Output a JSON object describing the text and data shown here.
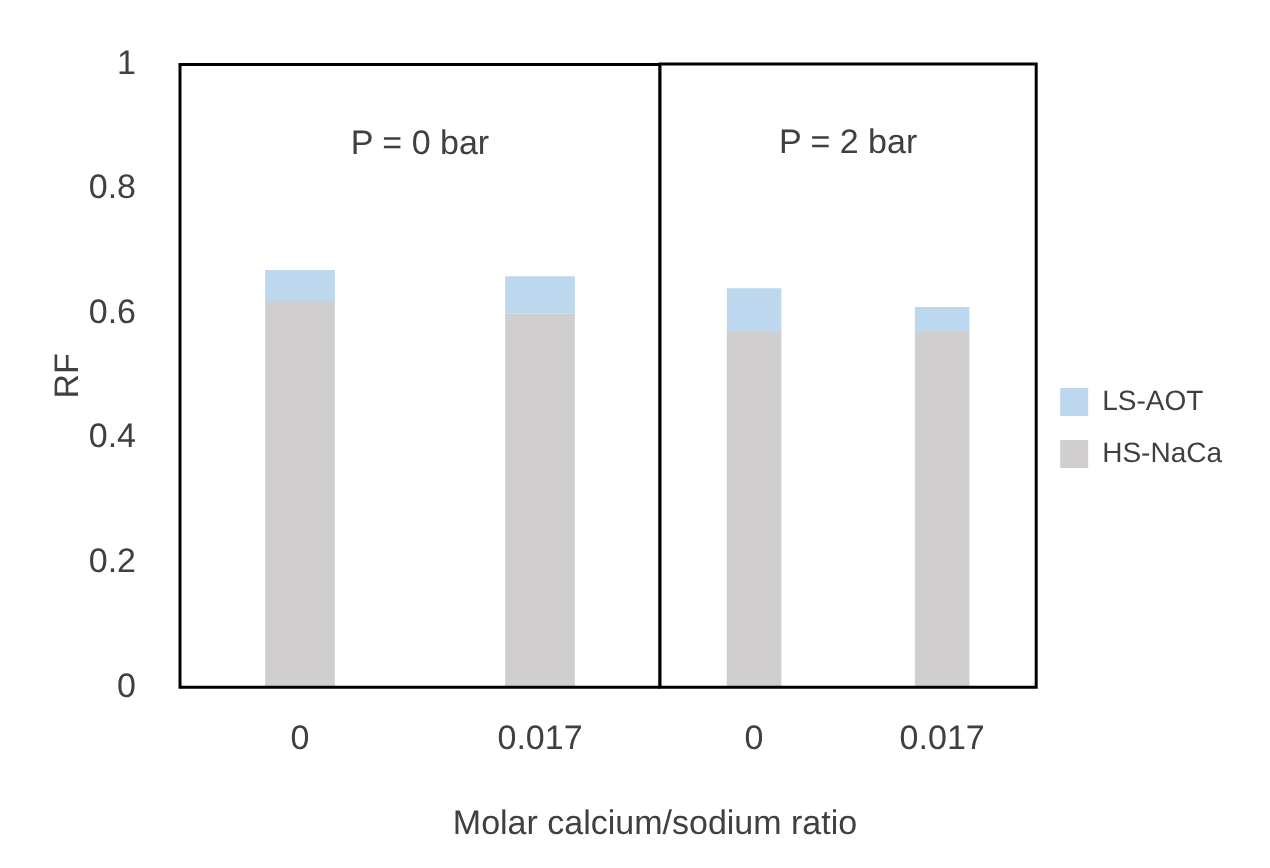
{
  "chart_data": [
    {
      "type": "bar",
      "stacked": true,
      "annotations": [
        "P = 0 bar"
      ],
      "xlabel": "Molar calcium/sodium ratio",
      "ylabel": "RF",
      "categories": [
        "0",
        "0.017"
      ],
      "series": [
        {
          "color": "#d0cece",
          "values": [
            0.62,
            0.6
          ]
        },
        {
          "color": "#bdd7ee",
          "values": [
            0.05,
            0.06
          ]
        }
      ],
      "ylim": [
        0,
        1
      ],
      "yticks": [
        0,
        0.2,
        0.4,
        0.6,
        0.8,
        1
      ],
      "grid": false,
      "legend": false
    },
    {
      "type": "bar",
      "stacked": true,
      "annotations": [
        "P = 2 bar"
      ],
      "categories": [
        "0",
        "0.017"
      ],
      "series": [
        {
          "name": "HS-NaCa",
          "color": "#d0cece",
          "values": [
            0.57,
            0.57
          ]
        },
        {
          "name": "LS-AOT",
          "color": "#bdd7ee",
          "values": [
            0.07,
            0.04
          ]
        }
      ],
      "ylim": [
        0,
        1
      ],
      "tick_labels": "x",
      "grid": false,
      "legend": "right"
    }
  ]
}
